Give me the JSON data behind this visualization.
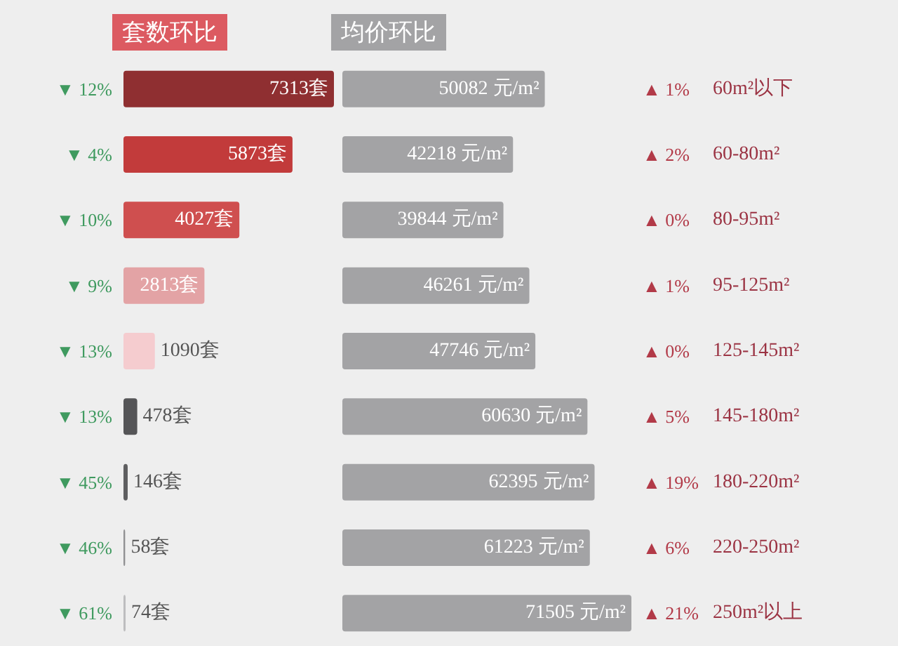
{
  "chart_data": [
    {
      "type": "bar",
      "orientation": "horizontal",
      "title": "套数环比",
      "categories": [
        "60m²以下",
        "60-80m²",
        "80-95m²",
        "95-125m²",
        "125-145m²",
        "145-180m²",
        "180-220m²",
        "220-250m²",
        "250m²以上"
      ],
      "tick_labels": false,
      "series": [
        {
          "colors": [
            "#8f2f31",
            "#c23b3b",
            "#cf4f4f",
            "#e3a3a5",
            "#f5cccf",
            "#555557",
            "#5e5e60",
            "#909092",
            "#bdbdbf"
          ],
          "values": [
            7313,
            5873,
            4027,
            2813,
            1090,
            478,
            146,
            58,
            74
          ],
          "value_labels": [
            "7313套",
            "5873套",
            "4027套",
            "2813套",
            "1090套",
            "478套",
            "146套",
            "58套",
            "74套"
          ]
        }
      ],
      "annotations": [
        "▼ 12%",
        "▼ 4%",
        "▼ 10%",
        "▼ 9%",
        "▼ 13%",
        "▼ 13%",
        "▼ 45%",
        "▼ 46%",
        "▼ 61%"
      ]
    },
    {
      "type": "bar",
      "orientation": "horizontal",
      "title": "均价环比",
      "categories": [
        "60m²以下",
        "60-80m²",
        "80-95m²",
        "95-125m²",
        "125-145m²",
        "145-180m²",
        "180-220m²",
        "220-250m²",
        "250m²以上"
      ],
      "tick_labels": "y",
      "series": [
        {
          "color": "#a3a3a5",
          "values": [
            50082,
            42218,
            39844,
            46261,
            47746,
            60630,
            62395,
            61223,
            71505
          ],
          "value_labels": [
            "50082 元/m²",
            "42218 元/m²",
            "39844 元/m²",
            "46261 元/m²",
            "47746 元/m²",
            "60630 元/m²",
            "62395 元/m²",
            "61223 元/m²",
            "71505 元/m²"
          ]
        }
      ],
      "annotations": [
        "▲ 1%",
        "▲ 2%",
        "▲ 0%",
        "▲ 1%",
        "▲ 0%",
        "▲ 5%",
        "▲ 19%",
        "▲ 6%",
        "▲ 21%"
      ]
    }
  ]
}
